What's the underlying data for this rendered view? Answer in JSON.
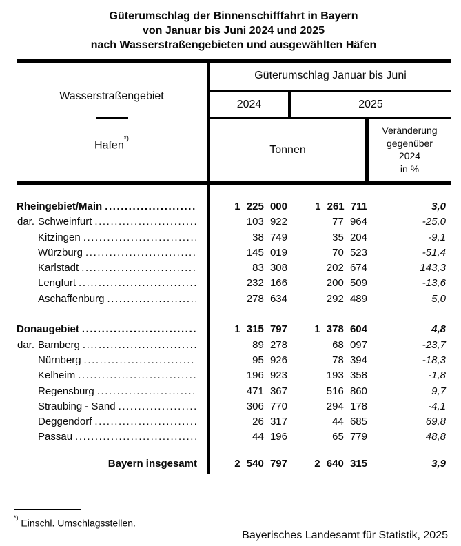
{
  "title": {
    "line1": "Güterumschlag der Binnenschifffahrt in Bayern",
    "line2": "von Januar bis Juni 2024 und 2025",
    "line3": "nach Wasserstraßengebieten und ausgewählten Häfen"
  },
  "table": {
    "header": {
      "col1_line1": "Wasserstraßengebiet",
      "col1_line2": "Hafen",
      "col1_footnote_marker": "*)",
      "group_title": "Güterumschlag Januar bis Juni",
      "year_left": "2024",
      "year_right": "2025",
      "unit": "Tonnen",
      "change_lines": [
        "Veränderung",
        "gegenüber",
        "2024",
        "in %"
      ]
    },
    "rows": [
      {
        "type": "group",
        "name": "Rheingebiet/Main",
        "v2024": "1 225 000",
        "v2025": "1 261 711",
        "pct": "3,0"
      },
      {
        "type": "port",
        "dar": "dar.",
        "name": "Schweinfurt",
        "v2024": "103 922",
        "v2025": "77 964",
        "pct": "-25,0"
      },
      {
        "type": "port",
        "dar": "",
        "name": "Kitzingen",
        "v2024": "38 749",
        "v2025": "35 204",
        "pct": "-9,1"
      },
      {
        "type": "port",
        "dar": "",
        "name": "Würzburg",
        "v2024": "145 019",
        "v2025": "70 523",
        "pct": "-51,4"
      },
      {
        "type": "port",
        "dar": "",
        "name": "Karlstadt",
        "v2024": "83 308",
        "v2025": "202 674",
        "pct": "143,3"
      },
      {
        "type": "port",
        "dar": "",
        "name": "Lengfurt",
        "v2024": "232 166",
        "v2025": "200 509",
        "pct": "-13,6"
      },
      {
        "type": "port",
        "dar": "",
        "name": "Aschaffenburg",
        "v2024": "278 634",
        "v2025": "292 489",
        "pct": "5,0"
      },
      {
        "type": "spacer"
      },
      {
        "type": "group",
        "name": "Donaugebiet",
        "v2024": "1 315 797",
        "v2025": "1 378 604",
        "pct": "4,8"
      },
      {
        "type": "port",
        "dar": "dar.",
        "name": "Bamberg",
        "v2024": "89 278",
        "v2025": "68 097",
        "pct": "-23,7"
      },
      {
        "type": "port",
        "dar": "",
        "name": "Nürnberg",
        "v2024": "95 926",
        "v2025": "78 394",
        "pct": "-18,3"
      },
      {
        "type": "port",
        "dar": "",
        "name": "Kelheim",
        "v2024": "196 923",
        "v2025": "193 358",
        "pct": "-1,8"
      },
      {
        "type": "port",
        "dar": "",
        "name": "Regensburg",
        "v2024": "471 367",
        "v2025": "516 860",
        "pct": "9,7"
      },
      {
        "type": "port",
        "dar": "",
        "name": "Straubing - Sand",
        "v2024": "306 770",
        "v2025": "294 178",
        "pct": "-4,1"
      },
      {
        "type": "port",
        "dar": "",
        "name": "Deggendorf",
        "v2024": "26 317",
        "v2025": "44 685",
        "pct": "69,8"
      },
      {
        "type": "port",
        "dar": "",
        "name": "Passau",
        "v2024": "44 196",
        "v2025": "65 779",
        "pct": "48,8"
      },
      {
        "type": "total",
        "name": "Bayern insgesamt",
        "v2024": "2 540 797",
        "v2025": "2 640 315",
        "pct": "3,9"
      }
    ]
  },
  "footnote": {
    "marker": "*)",
    "text": "Einschl. Umschlagsstellen."
  },
  "source": "Bayerisches Landesamt für Statistik, 2025"
}
